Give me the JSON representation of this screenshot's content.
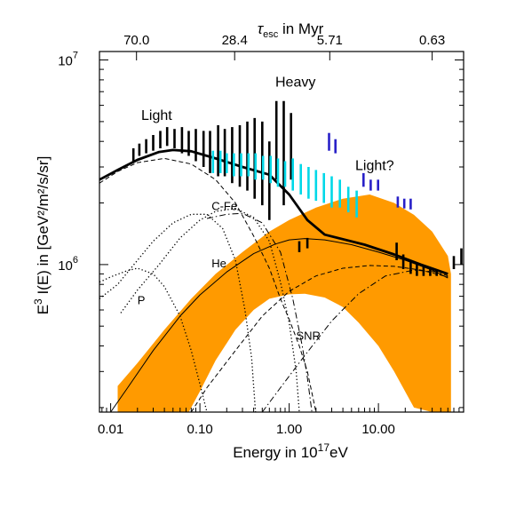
{
  "chart_data": {
    "type": "line",
    "xlabel": "Energy in 10",
    "xlabel_sup": "17",
    "xlabel_unit": "eV",
    "ylabel_prefix": "E",
    "ylabel_sup": "3",
    "ylabel_rest": " I(E) in [GeV²/m²/s/sr]",
    "toplabel_main": "τ",
    "toplabel_sub": "esc",
    "toplabel_rest": " in Myr",
    "x_scale": "log",
    "y_scale": "log",
    "xlim": [
      0.0075,
      90
    ],
    "ylim": [
      190000,
      11000000
    ],
    "grid": false,
    "x_ticks": [
      {
        "value": 0.01,
        "label": "0.01"
      },
      {
        "value": 0.1,
        "label": "0.10"
      },
      {
        "value": 1,
        "label": "1.00"
      },
      {
        "value": 10,
        "label": "10.00"
      }
    ],
    "y_ticks": [
      {
        "value": 1000000,
        "base": "10",
        "exp": "6"
      },
      {
        "value": 10000000,
        "base": "10",
        "exp": "7"
      }
    ],
    "top_ticks": [
      {
        "value": 0.0195,
        "label": "70.0"
      },
      {
        "value": 0.245,
        "label": "28.4"
      },
      {
        "value": 2.85,
        "label": "5.71"
      },
      {
        "value": 40,
        "label": "0.63"
      }
    ],
    "annotations": [
      {
        "text": "Light",
        "x": 0.022,
        "y": 5100000,
        "size": 16
      },
      {
        "text": "Heavy",
        "x": 0.7,
        "y": 7400000,
        "size": 16
      },
      {
        "text": "Light?",
        "x": 5.5,
        "y": 2900000,
        "size": 16
      },
      {
        "text": "C-Fe",
        "x": 0.135,
        "y": 1850000,
        "size": 13
      },
      {
        "text": "He",
        "x": 0.135,
        "y": 970000,
        "size": 13
      },
      {
        "text": "P",
        "x": 0.02,
        "y": 640000,
        "size": 13
      },
      {
        "text": "SNR",
        "x": 1.2,
        "y": 430000,
        "size": 13
      }
    ],
    "orange_band": {
      "color": "#ff9a00",
      "upper": [
        [
          0.012,
          255000
        ],
        [
          0.02,
          330000
        ],
        [
          0.04,
          480000
        ],
        [
          0.08,
          680000
        ],
        [
          0.15,
          900000
        ],
        [
          0.3,
          1150000
        ],
        [
          0.6,
          1450000
        ],
        [
          1.0,
          1650000
        ],
        [
          2.0,
          1900000
        ],
        [
          4.0,
          2100000
        ],
        [
          8.0,
          2200000
        ],
        [
          15,
          2000000
        ],
        [
          25,
          1750000
        ],
        [
          40,
          1450000
        ],
        [
          60,
          1100000
        ],
        [
          65,
          900000
        ]
      ],
      "lower": [
        [
          65,
          190000
        ],
        [
          40,
          190000
        ],
        [
          25,
          200000
        ],
        [
          15,
          300000
        ],
        [
          10,
          400000
        ],
        [
          6,
          520000
        ],
        [
          4,
          620000
        ],
        [
          2.5,
          690000
        ],
        [
          1.5,
          720000
        ],
        [
          1.0,
          715000
        ],
        [
          0.6,
          680000
        ],
        [
          0.4,
          600000
        ],
        [
          0.25,
          480000
        ],
        [
          0.15,
          340000
        ],
        [
          0.1,
          240000
        ],
        [
          0.075,
          190000
        ],
        [
          0.012,
          190000
        ]
      ]
    },
    "series": [
      {
        "name": "",
        "style": "total-thick",
        "points": [
          [
            0.0075,
            2600000
          ],
          [
            0.012,
            2900000
          ],
          [
            0.02,
            3250000
          ],
          [
            0.035,
            3550000
          ],
          [
            0.05,
            3630000
          ],
          [
            0.08,
            3580000
          ],
          [
            0.15,
            3300000
          ],
          [
            0.3,
            3000000
          ],
          [
            0.6,
            2750000
          ],
          [
            1.0,
            2200000
          ],
          [
            1.6,
            1650000
          ],
          [
            2.5,
            1400000
          ],
          [
            4,
            1330000
          ],
          [
            7,
            1250000
          ],
          [
            15,
            1120000
          ],
          [
            30,
            1000000
          ],
          [
            60,
            900000
          ]
        ]
      },
      {
        "name": "",
        "style": "total-thin-dashed",
        "points": [
          [
            0.0075,
            2500000
          ],
          [
            0.012,
            2850000
          ],
          [
            0.02,
            3150000
          ],
          [
            0.04,
            3300000
          ],
          [
            0.08,
            3100000
          ],
          [
            0.15,
            2600000
          ],
          [
            0.25,
            2000000
          ],
          [
            0.4,
            1380000
          ],
          [
            0.6,
            960000
          ],
          [
            0.8,
            680000
          ],
          [
            1.0,
            540000
          ],
          [
            1.3,
            400000
          ],
          [
            1.6,
            300000
          ],
          [
            2.0,
            190000
          ]
        ]
      },
      {
        "name": "",
        "style": "snr-solid",
        "points": [
          [
            0.01,
            190000
          ],
          [
            0.015,
            245000
          ],
          [
            0.03,
            380000
          ],
          [
            0.06,
            560000
          ],
          [
            0.1,
            710000
          ],
          [
            0.2,
            920000
          ],
          [
            0.4,
            1130000
          ],
          [
            0.7,
            1260000
          ],
          [
            1.0,
            1320000
          ],
          [
            1.5,
            1340000
          ],
          [
            2.5,
            1320000
          ],
          [
            5,
            1250000
          ],
          [
            10,
            1150000
          ],
          [
            20,
            1050000
          ],
          [
            40,
            940000
          ],
          [
            60,
            860000
          ]
        ]
      },
      {
        "name": "",
        "style": "dashed",
        "points": [
          [
            0.08,
            190000
          ],
          [
            0.12,
            250000
          ],
          [
            0.25,
            380000
          ],
          [
            0.5,
            560000
          ],
          [
            1.0,
            740000
          ],
          [
            2.0,
            880000
          ],
          [
            4.0,
            960000
          ],
          [
            8.0,
            990000
          ],
          [
            15,
            980000
          ],
          [
            30,
            940000
          ],
          [
            60,
            870000
          ]
        ]
      },
      {
        "name": "",
        "style": "dashdot",
        "points": [
          [
            0.5,
            190000
          ],
          [
            0.8,
            250000
          ],
          [
            1.5,
            360000
          ],
          [
            3,
            530000
          ],
          [
            6,
            720000
          ],
          [
            12,
            880000
          ],
          [
            25,
            940000
          ],
          [
            45,
            920000
          ],
          [
            60,
            880000
          ]
        ]
      },
      {
        "name": "",
        "style": "dashdot",
        "points": [
          [
            0.12,
            1680000
          ],
          [
            0.2,
            1760000
          ],
          [
            0.3,
            1780000
          ],
          [
            0.5,
            1600000
          ],
          [
            0.8,
            1150000
          ],
          [
            1.1,
            680000
          ],
          [
            1.4,
            400000
          ],
          [
            1.6,
            280000
          ],
          [
            1.8,
            190000
          ]
        ]
      },
      {
        "name": "",
        "style": "dotted",
        "points": [
          [
            0.0075,
            820000
          ],
          [
            0.01,
            870000
          ],
          [
            0.015,
            930000
          ],
          [
            0.02,
            960000
          ],
          [
            0.03,
            900000
          ],
          [
            0.04,
            780000
          ],
          [
            0.06,
            560000
          ],
          [
            0.08,
            380000
          ],
          [
            0.1,
            260000
          ],
          [
            0.12,
            190000
          ]
        ]
      },
      {
        "name": "",
        "style": "dotted",
        "points": [
          [
            0.0075,
            680000
          ],
          [
            0.012,
            800000
          ],
          [
            0.02,
            1050000
          ],
          [
            0.03,
            1300000
          ],
          [
            0.05,
            1600000
          ],
          [
            0.08,
            1760000
          ],
          [
            0.12,
            1760000
          ],
          [
            0.18,
            1500000
          ],
          [
            0.25,
            1050000
          ],
          [
            0.32,
            600000
          ],
          [
            0.38,
            350000
          ],
          [
            0.42,
            190000
          ]
        ]
      },
      {
        "name": "",
        "style": "dotted",
        "points": [
          [
            0.013,
            580000
          ],
          [
            0.02,
            750000
          ],
          [
            0.035,
            1000000
          ],
          [
            0.06,
            1350000
          ],
          [
            0.1,
            1650000
          ],
          [
            0.15,
            1820000
          ],
          [
            0.25,
            1880000
          ],
          [
            0.4,
            1700000
          ],
          [
            0.6,
            1300000
          ],
          [
            0.8,
            820000
          ],
          [
            1.0,
            520000
          ],
          [
            1.2,
            300000
          ],
          [
            1.3,
            190000
          ]
        ]
      }
    ],
    "data_bars": [
      {
        "color": "#000000",
        "bars": [
          [
            0.018,
            3200000,
            3700000
          ],
          [
            0.021,
            3400000,
            3900000
          ],
          [
            0.025,
            3500000,
            4100000
          ],
          [
            0.03,
            3600000,
            4300000
          ],
          [
            0.036,
            3700000,
            4500000
          ],
          [
            0.043,
            3800000,
            4700000
          ],
          [
            0.052,
            3700000,
            4600000
          ],
          [
            0.063,
            3500000,
            4700000
          ],
          [
            0.075,
            3400000,
            4500000
          ],
          [
            0.09,
            3200000,
            4600000
          ],
          [
            0.11,
            3000000,
            4500000
          ],
          [
            0.13,
            2800000,
            4500000
          ],
          [
            0.16,
            2700000,
            4800000
          ],
          [
            0.19,
            2700000,
            4600000
          ],
          [
            0.23,
            2500000,
            4700000
          ],
          [
            0.28,
            2400000,
            4800000
          ],
          [
            0.34,
            2300000,
            5000000
          ],
          [
            0.41,
            2100000,
            5200000
          ],
          [
            0.5,
            1950000,
            5000000
          ],
          [
            0.6,
            1650000,
            4000000
          ],
          [
            0.72,
            2600000,
            6300000
          ],
          [
            0.87,
            1950000,
            6300000
          ],
          [
            1.05,
            2600000,
            5500000
          ],
          [
            1.3,
            1150000,
            1300000
          ],
          [
            1.6,
            1200000,
            1350000
          ],
          [
            16,
            1050000,
            1280000
          ],
          [
            19,
            950000,
            1120000
          ],
          [
            23,
            900000,
            1050000
          ],
          [
            27,
            880000,
            1000000
          ],
          [
            32,
            880000,
            980000
          ],
          [
            38,
            880000,
            960000
          ],
          [
            45,
            880000,
            950000
          ],
          [
            70,
            950000,
            1100000
          ],
          [
            85,
            1000000,
            1200000
          ]
        ]
      },
      {
        "color": "#00d8e8",
        "bars": [
          [
            0.14,
            2800000,
            3600000
          ],
          [
            0.17,
            2800000,
            3600000
          ],
          [
            0.2,
            2800000,
            3500000
          ],
          [
            0.24,
            2700000,
            3500000
          ],
          [
            0.29,
            2700000,
            3500000
          ],
          [
            0.35,
            2700000,
            3500000
          ],
          [
            0.42,
            2600000,
            3500000
          ],
          [
            0.51,
            2600000,
            3400000
          ],
          [
            0.62,
            2500000,
            3400000
          ],
          [
            0.75,
            2400000,
            3300000
          ],
          [
            0.9,
            2400000,
            3200000
          ],
          [
            1.1,
            2300000,
            3300000
          ],
          [
            1.35,
            2200000,
            3100000
          ],
          [
            1.65,
            2100000,
            3000000
          ],
          [
            2.0,
            2050000,
            2900000
          ],
          [
            2.45,
            2000000,
            2800000
          ],
          [
            3.0,
            1900000,
            2700000
          ],
          [
            3.7,
            1900000,
            2600000
          ],
          [
            4.6,
            1800000,
            2400000
          ],
          [
            5.7,
            1700000,
            2300000
          ]
        ]
      },
      {
        "color": "#2820c8",
        "bars": [
          [
            2.8,
            3600000,
            4400000
          ],
          [
            3.3,
            3500000,
            4100000
          ],
          [
            6.8,
            2400000,
            2800000
          ],
          [
            8.2,
            2300000,
            2600000
          ],
          [
            9.9,
            2300000,
            2600000
          ],
          [
            16.5,
            1900000,
            2150000
          ],
          [
            19.5,
            1880000,
            2100000
          ],
          [
            23,
            1860000,
            2100000
          ]
        ]
      }
    ]
  }
}
